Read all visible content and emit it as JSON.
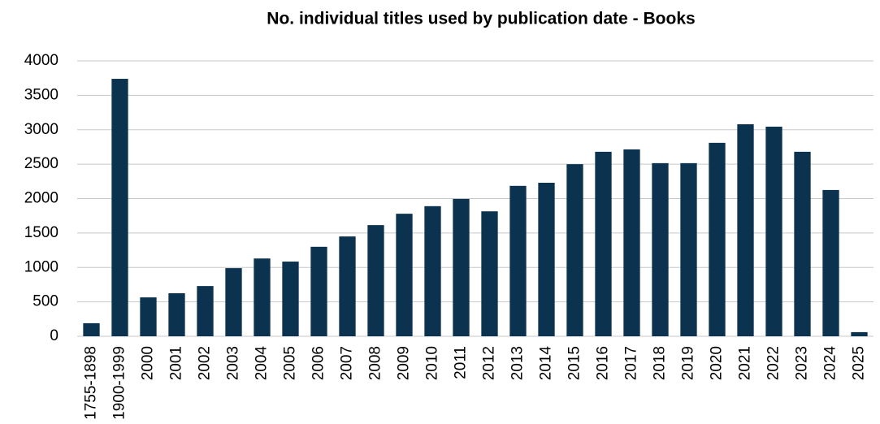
{
  "chart_data": {
    "type": "bar",
    "title": "No. individual titles used by publication date - Books",
    "categories": [
      "1755-1898",
      "1900-1999",
      "2000",
      "2001",
      "2002",
      "2003",
      "2004",
      "2005",
      "2006",
      "2007",
      "2008",
      "2009",
      "2010",
      "2011",
      "2012",
      "2013",
      "2014",
      "2015",
      "2016",
      "2017",
      "2018",
      "2019",
      "2020",
      "2021",
      "2022",
      "2023",
      "2024",
      "2025"
    ],
    "values": [
      190,
      3740,
      565,
      625,
      730,
      990,
      1130,
      1085,
      1300,
      1450,
      1615,
      1780,
      1890,
      1995,
      1815,
      2185,
      2230,
      2500,
      2680,
      2715,
      2515,
      2515,
      2810,
      3080,
      3045,
      2680,
      2125,
      60
    ],
    "color": "#0b3350",
    "ylim": [
      0,
      4000
    ],
    "yticks": [
      0,
      500,
      1000,
      1500,
      2000,
      2500,
      3000,
      3500,
      4000
    ],
    "grid": true
  }
}
